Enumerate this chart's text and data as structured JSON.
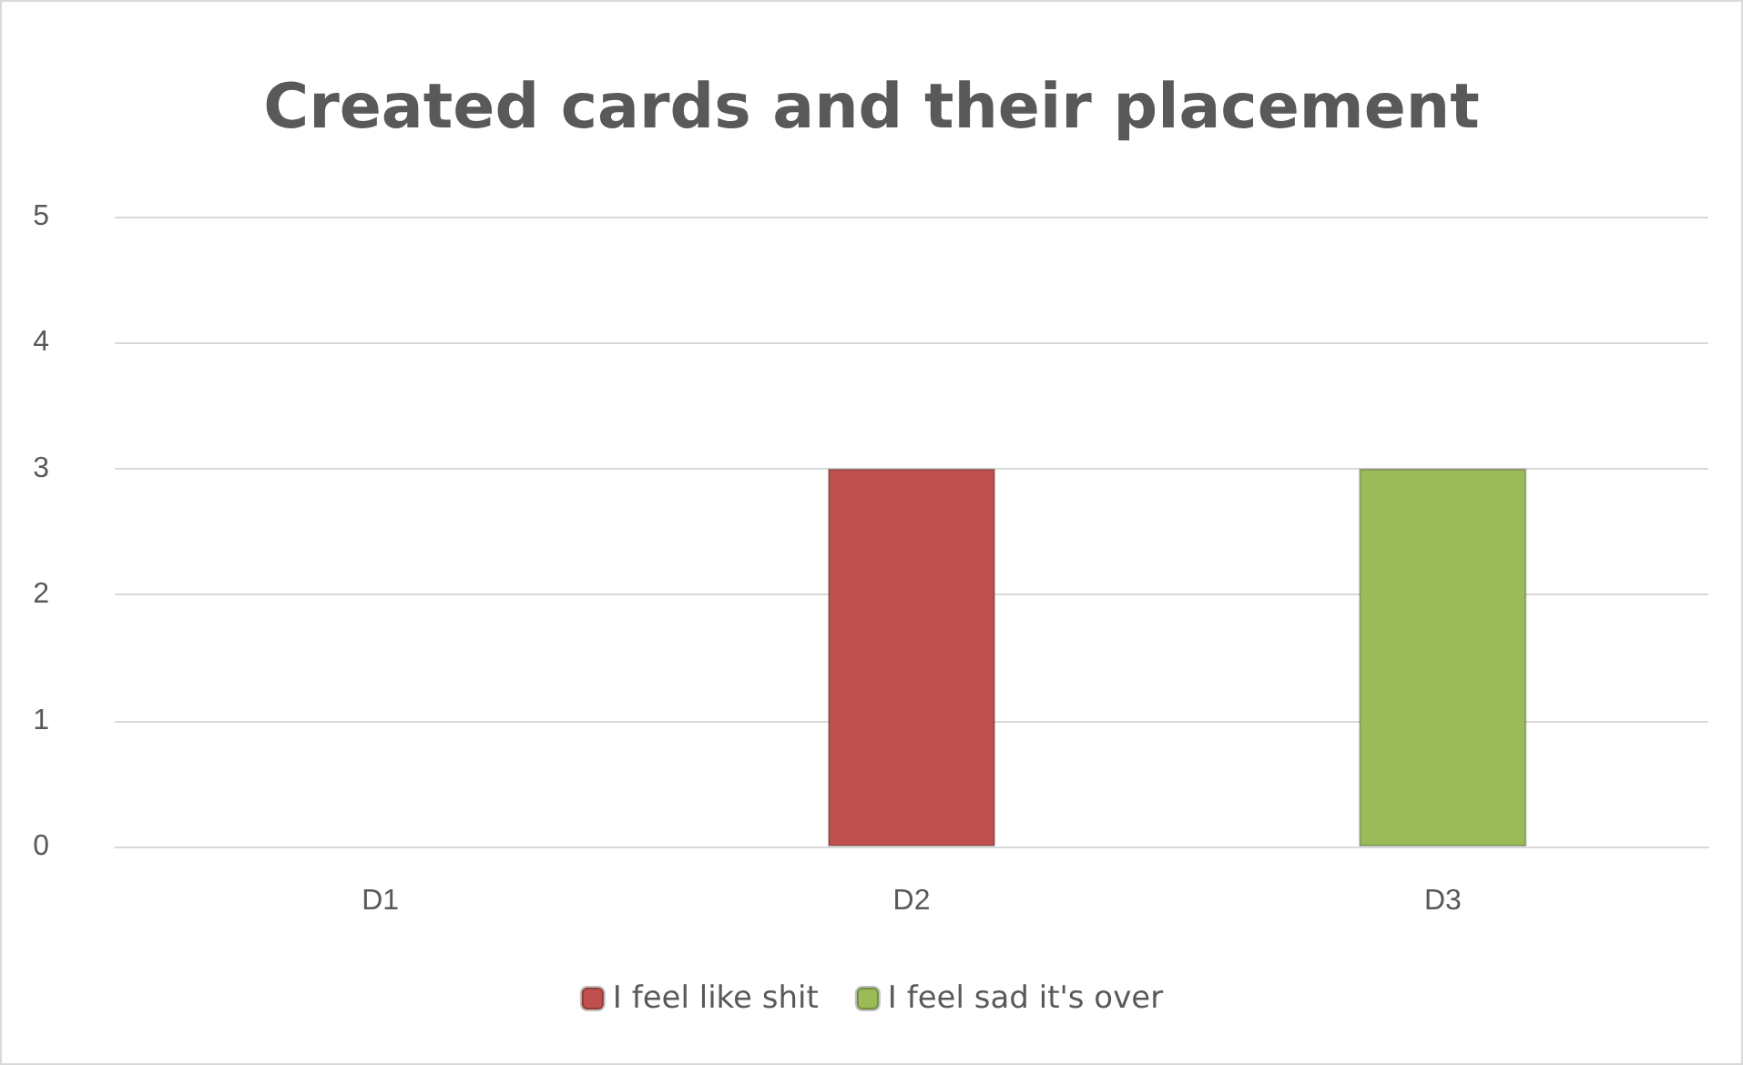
{
  "chart_data": {
    "type": "bar",
    "title": "Created cards and their placement",
    "categories": [
      "D1",
      "D2",
      "D3"
    ],
    "stacked": true,
    "series": [
      {
        "name": "I feel like shit",
        "color": "#c0504d",
        "values": [
          null,
          3,
          null
        ]
      },
      {
        "name": "I feel sad it's over",
        "color": "#9bbb59",
        "values": [
          null,
          null,
          3
        ]
      }
    ],
    "ylim": [
      0,
      5
    ],
    "yticks": [
      0,
      1,
      2,
      3,
      4,
      5
    ],
    "grid": "y",
    "legend": "bottom"
  }
}
